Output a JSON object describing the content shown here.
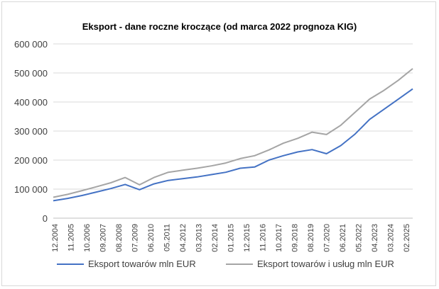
{
  "chart_data": {
    "type": "line",
    "title": "Eksport - dane roczne kroczące (od marca 2022 prognoza KIG)",
    "ylim": [
      0,
      600000
    ],
    "y_ticks": [
      0,
      100000,
      200000,
      300000,
      400000,
      500000,
      600000
    ],
    "y_tick_labels": [
      "0",
      "100 000",
      "200 000",
      "300 000",
      "400 000",
      "500 000",
      "600 000"
    ],
    "x_tick_labels": [
      "12.2004",
      "11.2005",
      "10.2006",
      "09.2007",
      "08.2008",
      "07.2009",
      "06.2010",
      "05.2011",
      "04.2012",
      "03.2013",
      "02.2014",
      "01.2015",
      "12.2015",
      "11.2016",
      "10.2017",
      "09.2018",
      "08.2019",
      "07.2020",
      "06.2021",
      "05.2022",
      "04.2023",
      "03.2024",
      "02.2025"
    ],
    "grid": true,
    "legend_position": "bottom",
    "series": [
      {
        "name": "Eksport towarów mln EUR",
        "color": "#4472c4",
        "values": [
          60000,
          68000,
          78000,
          90000,
          102000,
          116000,
          98000,
          118000,
          130000,
          136000,
          142000,
          150000,
          158000,
          172000,
          176000,
          200000,
          215000,
          228000,
          236000,
          222000,
          250000,
          290000,
          340000,
          375000,
          410000,
          445000
        ]
      },
      {
        "name": "Eksport towarów i usług mln EUR",
        "color": "#a5a5a5",
        "values": [
          72000,
          82000,
          95000,
          108000,
          122000,
          140000,
          115000,
          140000,
          158000,
          165000,
          172000,
          180000,
          190000,
          205000,
          215000,
          235000,
          258000,
          275000,
          296000,
          288000,
          320000,
          365000,
          410000,
          440000,
          475000,
          515000
        ]
      }
    ]
  }
}
